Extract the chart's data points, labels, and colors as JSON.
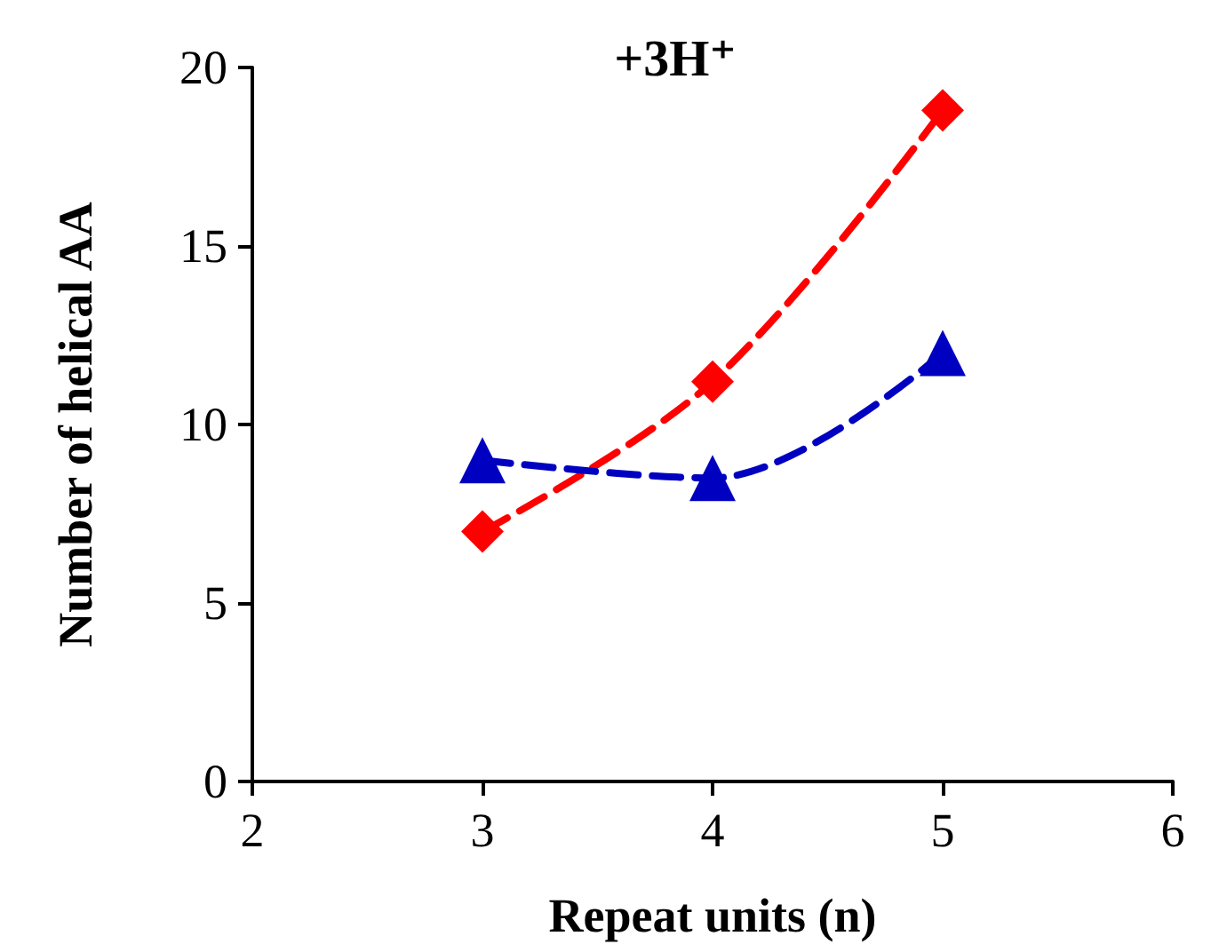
{
  "chart_data": {
    "type": "line",
    "title": "+3H⁺",
    "xlabel": "Repeat units (n)",
    "ylabel": "Number of helical AA",
    "x": [
      3,
      4,
      5
    ],
    "series": [
      {
        "color": "#ff0000",
        "marker": "diamond",
        "values": [
          7.0,
          11.2,
          18.8
        ]
      },
      {
        "color": "#0000c0",
        "marker": "triangle",
        "values": [
          9.0,
          8.5,
          12.0
        ]
      }
    ],
    "xlim": [
      2,
      6
    ],
    "xticks": [
      2,
      3,
      4,
      5,
      6
    ],
    "ylim": [
      0,
      20
    ],
    "yticks": [
      0,
      5,
      10,
      15,
      20
    ],
    "grid": false,
    "line_style": "dashed"
  }
}
